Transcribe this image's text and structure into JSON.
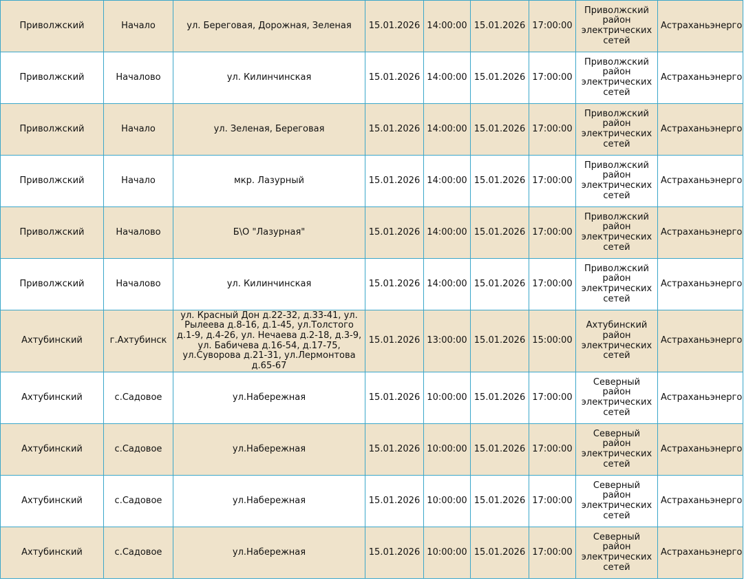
{
  "table": {
    "rows": [
      [
        "Приволжский",
        "Начало",
        "ул. Береговая, Дорожная, Зеленая",
        "15.01.2026",
        "14:00:00",
        "15.01.2026",
        "17:00:00",
        "Приволжский район электрических сетей",
        "Астраханьэнерго"
      ],
      [
        "Приволжский",
        "Началово",
        "ул. Килинчинская",
        "15.01.2026",
        "14:00:00",
        "15.01.2026",
        "17:00:00",
        "Приволжский район электрических сетей",
        "Астраханьэнерго"
      ],
      [
        "Приволжский",
        "Начало",
        "ул. Зеленая, Береговая",
        "15.01.2026",
        "14:00:00",
        "15.01.2026",
        "17:00:00",
        "Приволжский район электрических сетей",
        "Астраханьэнерго"
      ],
      [
        "Приволжский",
        "Начало",
        "мкр. Лазурный",
        "15.01.2026",
        "14:00:00",
        "15.01.2026",
        "17:00:00",
        "Приволжский район электрических сетей",
        "Астраханьэнерго"
      ],
      [
        "Приволжский",
        "Началово",
        "Б\\О \"Лазурная\"",
        "15.01.2026",
        "14:00:00",
        "15.01.2026",
        "17:00:00",
        "Приволжский район электрических сетей",
        "Астраханьэнерго"
      ],
      [
        "Приволжский",
        "Началово",
        "ул. Килинчинская",
        "15.01.2026",
        "14:00:00",
        "15.01.2026",
        "17:00:00",
        "Приволжский район электрических сетей",
        "Астраханьэнерго"
      ],
      [
        "Ахтубинский",
        "г.Ахтубинск",
        "ул. Красный Дон д.22-32, д.33-41, ул. Рылеева д.8-16, д.1-45, ул.Толстого д.1-9, д.4-26, ул. Нечаева д.2-18, д.3-9, ул. Бабичева д.16-54, д.17-75, ул.Суворова д.21-31, ул.Лермонтова д.65-67",
        "15.01.2026",
        "13:00:00",
        "15.01.2026",
        "15:00:00",
        "Ахтубинский район электрических сетей",
        "Астраханьэнерго"
      ],
      [
        "Ахтубинский",
        "с.Садовое",
        "ул.Набережная",
        "15.01.2026",
        "10:00:00",
        "15.01.2026",
        "17:00:00",
        "Северный район электрических сетей",
        "Астраханьэнерго"
      ],
      [
        "Ахтубинский",
        "с.Садовое",
        "ул.Набережная",
        "15.01.2026",
        "10:00:00",
        "15.01.2026",
        "17:00:00",
        "Северный район электрических сетей",
        "Астраханьэнерго"
      ],
      [
        "Ахтубинский",
        "с.Садовое",
        "ул.Набережная",
        "15.01.2026",
        "10:00:00",
        "15.01.2026",
        "17:00:00",
        "Северный район электрических сетей",
        "Астраханьэнерго"
      ],
      [
        "Ахтубинский",
        "с.Садовое",
        "ул.Набережная",
        "15.01.2026",
        "10:00:00",
        "15.01.2026",
        "17:00:00",
        "Северный район электрических сетей",
        "Астраханьэнерго"
      ]
    ]
  }
}
